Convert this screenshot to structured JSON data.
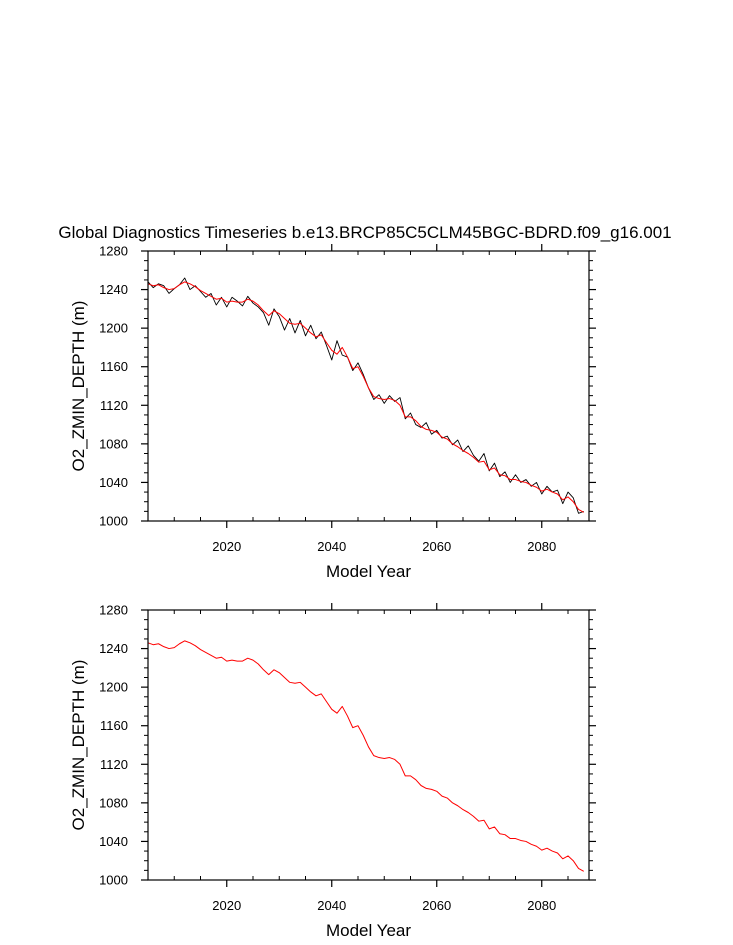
{
  "title": "Global Diagnostics Timeseries b.e13.BRCP85C5CLM45BGC-BDRD.f09_g16.001",
  "colors": {
    "monthly": "#000000",
    "annual": "#ff0000",
    "axes": "#000000"
  },
  "chart_data": [
    {
      "type": "line",
      "title": "Global Diagnostics Timeseries b.e13.BRCP85C5CLM45BGC-BDRD.f09_g16.001",
      "xlabel": "Model Year",
      "ylabel": "O2_ZMIN_DEPTH (m)",
      "xlim": [
        2005,
        2089
      ],
      "ylim": [
        1000,
        1280
      ],
      "xticks": [
        2020,
        2040,
        2060,
        2080
      ],
      "yticks": [
        1000,
        1040,
        1080,
        1120,
        1160,
        1200,
        1240,
        1280
      ],
      "series": [
        {
          "name": "monthly",
          "color": "#000000",
          "x": [
            2005,
            2006,
            2007,
            2008,
            2009,
            2010,
            2011,
            2012,
            2013,
            2014,
            2015,
            2016,
            2017,
            2018,
            2019,
            2020,
            2021,
            2022,
            2023,
            2024,
            2025,
            2026,
            2027,
            2028,
            2029,
            2030,
            2031,
            2032,
            2033,
            2034,
            2035,
            2036,
            2037,
            2038,
            2039,
            2040,
            2041,
            2042,
            2043,
            2044,
            2045,
            2046,
            2047,
            2048,
            2049,
            2050,
            2051,
            2052,
            2053,
            2054,
            2055,
            2056,
            2057,
            2058,
            2059,
            2060,
            2061,
            2062,
            2063,
            2064,
            2065,
            2066,
            2067,
            2068,
            2069,
            2070,
            2071,
            2072,
            2073,
            2074,
            2075,
            2076,
            2077,
            2078,
            2079,
            2080,
            2081,
            2082,
            2083,
            2084,
            2085,
            2086,
            2087,
            2088
          ],
          "y": [
            1248,
            1242,
            1246,
            1244,
            1236,
            1241,
            1245,
            1252,
            1240,
            1244,
            1238,
            1232,
            1236,
            1224,
            1232,
            1222,
            1232,
            1228,
            1223,
            1233,
            1226,
            1222,
            1216,
            1203,
            1220,
            1212,
            1198,
            1210,
            1195,
            1208,
            1192,
            1203,
            1189,
            1196,
            1182,
            1167,
            1187,
            1172,
            1170,
            1156,
            1164,
            1152,
            1138,
            1126,
            1131,
            1122,
            1130,
            1124,
            1128,
            1106,
            1112,
            1100,
            1097,
            1102,
            1090,
            1094,
            1086,
            1088,
            1079,
            1084,
            1072,
            1078,
            1068,
            1062,
            1070,
            1052,
            1060,
            1046,
            1051,
            1040,
            1048,
            1040,
            1043,
            1036,
            1040,
            1028,
            1036,
            1030,
            1032,
            1018,
            1030,
            1024,
            1008,
            1010
          ]
        },
        {
          "name": "annual",
          "color": "#ff0000",
          "x": [
            2005,
            2006,
            2007,
            2008,
            2009,
            2010,
            2011,
            2012,
            2013,
            2014,
            2015,
            2016,
            2017,
            2018,
            2019,
            2020,
            2021,
            2022,
            2023,
            2024,
            2025,
            2026,
            2027,
            2028,
            2029,
            2030,
            2031,
            2032,
            2033,
            2034,
            2035,
            2036,
            2037,
            2038,
            2039,
            2040,
            2041,
            2042,
            2043,
            2044,
            2045,
            2046,
            2047,
            2048,
            2049,
            2050,
            2051,
            2052,
            2053,
            2054,
            2055,
            2056,
            2057,
            2058,
            2059,
            2060,
            2061,
            2062,
            2063,
            2064,
            2065,
            2066,
            2067,
            2068,
            2069,
            2070,
            2071,
            2072,
            2073,
            2074,
            2075,
            2076,
            2077,
            2078,
            2079,
            2080,
            2081,
            2082,
            2083,
            2084,
            2085,
            2086,
            2087,
            2088
          ],
          "y": [
            1246,
            1244,
            1245,
            1242,
            1240,
            1241,
            1245,
            1248,
            1246,
            1243,
            1239,
            1236,
            1233,
            1230,
            1231,
            1227,
            1228,
            1227,
            1227,
            1230,
            1228,
            1224,
            1218,
            1213,
            1218,
            1215,
            1210,
            1205,
            1204,
            1205,
            1200,
            1195,
            1191,
            1193,
            1185,
            1177,
            1173,
            1180,
            1170,
            1158,
            1160,
            1150,
            1138,
            1129,
            1127,
            1126,
            1127,
            1125,
            1120,
            1108,
            1108,
            1104,
            1098,
            1095,
            1094,
            1092,
            1087,
            1085,
            1080,
            1077,
            1073,
            1070,
            1066,
            1061,
            1062,
            1053,
            1055,
            1048,
            1047,
            1043,
            1043,
            1041,
            1040,
            1037,
            1035,
            1031,
            1033,
            1030,
            1028,
            1022,
            1025,
            1020,
            1012,
            1009
          ]
        }
      ]
    },
    {
      "type": "line",
      "title": "",
      "xlabel": "Model Year",
      "ylabel": "O2_ZMIN_DEPTH (m)",
      "xlim": [
        2005,
        2089
      ],
      "ylim": [
        1000,
        1280
      ],
      "xticks": [
        2020,
        2040,
        2060,
        2080
      ],
      "yticks": [
        1000,
        1040,
        1080,
        1120,
        1160,
        1200,
        1240,
        1280
      ],
      "series": [
        {
          "name": "annual",
          "color": "#ff0000",
          "x": [
            2005,
            2006,
            2007,
            2008,
            2009,
            2010,
            2011,
            2012,
            2013,
            2014,
            2015,
            2016,
            2017,
            2018,
            2019,
            2020,
            2021,
            2022,
            2023,
            2024,
            2025,
            2026,
            2027,
            2028,
            2029,
            2030,
            2031,
            2032,
            2033,
            2034,
            2035,
            2036,
            2037,
            2038,
            2039,
            2040,
            2041,
            2042,
            2043,
            2044,
            2045,
            2046,
            2047,
            2048,
            2049,
            2050,
            2051,
            2052,
            2053,
            2054,
            2055,
            2056,
            2057,
            2058,
            2059,
            2060,
            2061,
            2062,
            2063,
            2064,
            2065,
            2066,
            2067,
            2068,
            2069,
            2070,
            2071,
            2072,
            2073,
            2074,
            2075,
            2076,
            2077,
            2078,
            2079,
            2080,
            2081,
            2082,
            2083,
            2084,
            2085,
            2086,
            2087,
            2088
          ],
          "y": [
            1246,
            1244,
            1245,
            1242,
            1240,
            1241,
            1245,
            1248,
            1246,
            1243,
            1239,
            1236,
            1233,
            1230,
            1231,
            1227,
            1228,
            1227,
            1227,
            1230,
            1228,
            1224,
            1218,
            1213,
            1218,
            1215,
            1210,
            1205,
            1204,
            1205,
            1200,
            1195,
            1191,
            1193,
            1185,
            1177,
            1173,
            1180,
            1170,
            1158,
            1160,
            1150,
            1138,
            1129,
            1127,
            1126,
            1127,
            1125,
            1120,
            1108,
            1108,
            1104,
            1098,
            1095,
            1094,
            1092,
            1087,
            1085,
            1080,
            1077,
            1073,
            1070,
            1066,
            1061,
            1062,
            1053,
            1055,
            1048,
            1047,
            1043,
            1043,
            1041,
            1040,
            1037,
            1035,
            1031,
            1033,
            1030,
            1028,
            1022,
            1025,
            1020,
            1012,
            1009
          ]
        }
      ]
    }
  ]
}
